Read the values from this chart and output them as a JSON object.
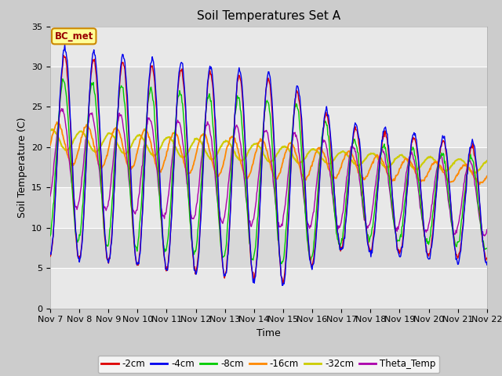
{
  "title": "Soil Temperatures Set A",
  "xlabel": "Time",
  "ylabel": "Soil Temperature (C)",
  "ylim": [
    0,
    35
  ],
  "yticks": [
    0,
    5,
    10,
    15,
    20,
    25,
    30,
    35
  ],
  "x_tick_labels": [
    "Nov 7",
    "Nov 8",
    "Nov 9",
    "Nov 10",
    "Nov 11",
    "Nov 12",
    "Nov 13",
    "Nov 14",
    "Nov 15",
    "Nov 16",
    "Nov 17",
    "Nov 18",
    "Nov 19",
    "Nov 20",
    "Nov 21",
    "Nov 22"
  ],
  "series_colors": {
    "-2cm": "#dd0000",
    "-4cm": "#0000ee",
    "-8cm": "#00cc00",
    "-16cm": "#ff8800",
    "-32cm": "#cccc00",
    "Theta_Temp": "#aa00aa"
  },
  "fig_bg_color": "#cccccc",
  "plot_bg_color": "#e8e8e8",
  "band_color_light": "#e8e8e8",
  "band_color_dark": "#d8d8d8",
  "annotation_text": "BC_met",
  "annotation_color": "#990000",
  "annotation_bg": "#ffff99",
  "annotation_border": "#cc8800",
  "lw": 1.0,
  "title_fontsize": 11,
  "axis_label_fontsize": 9,
  "tick_fontsize": 8
}
